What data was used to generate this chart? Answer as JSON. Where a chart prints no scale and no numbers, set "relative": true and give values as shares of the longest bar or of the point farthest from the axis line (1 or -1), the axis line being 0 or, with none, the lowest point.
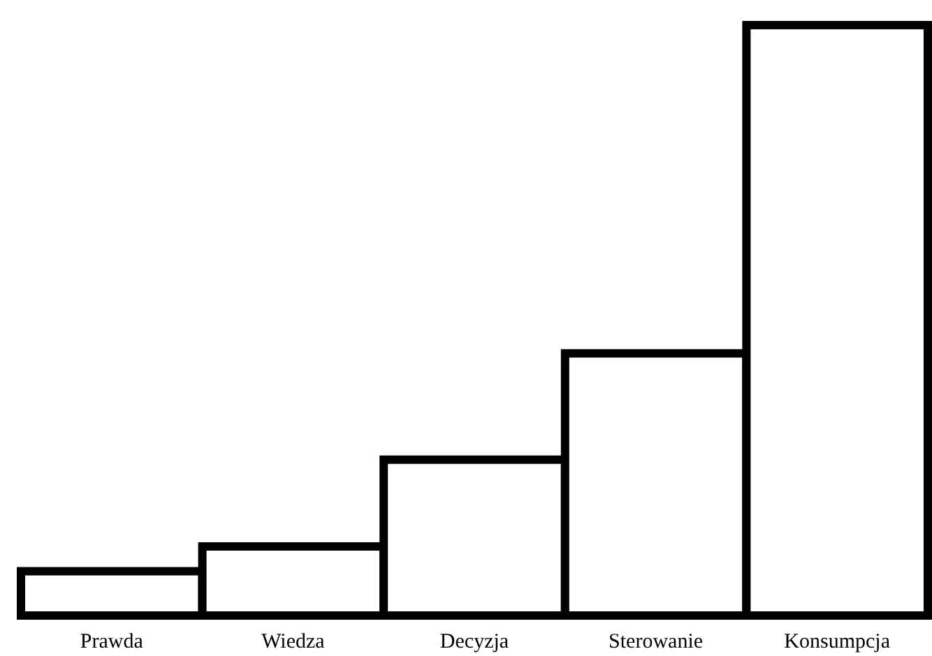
{
  "chart_data": {
    "type": "bar",
    "relative": true,
    "categories": [
      "Prawda",
      "Wiedza",
      "Decyzja",
      "Sterowanie",
      "Konsumpcja"
    ],
    "values": [
      0.075,
      0.117,
      0.264,
      0.444,
      1
    ],
    "color": "#ffffff"
  }
}
